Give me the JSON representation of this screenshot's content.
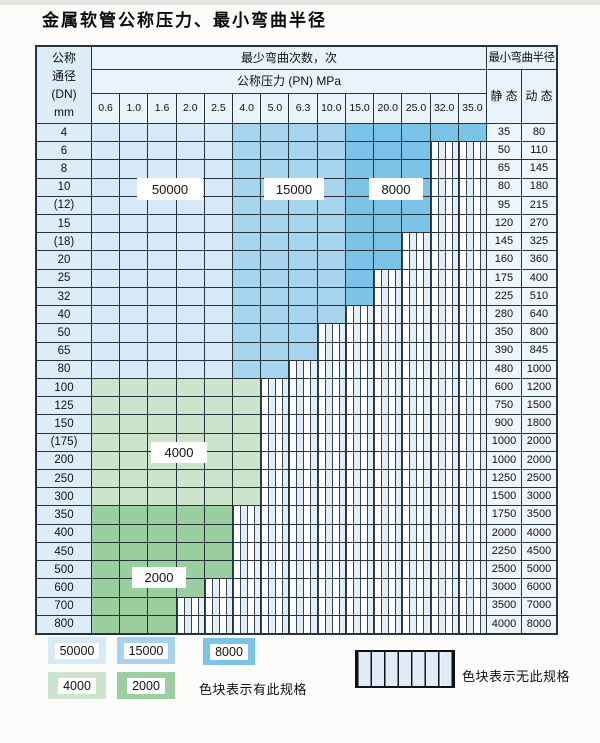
{
  "title": "金属软管公称压力、最小弯曲半径",
  "colors": {
    "c50000": "#d6eaf7",
    "c15000": "#a6d4ee",
    "c8000": "#7cc3e8",
    "c4000": "#cde4cd",
    "c2000": "#9ccf9f",
    "grid_line": "#24333c",
    "header_bg": "#e9f3fa",
    "dn_col_bg": "#ddedf8",
    "value_col_bg": "#eef5fb",
    "hatch_bg": "#eef4fa"
  },
  "table": {
    "header": {
      "dn_lines": [
        "公称",
        "通径",
        "(DN)",
        "mm"
      ],
      "bend_times": "最少弯曲次数，次",
      "pressure": "公称压力 (PN) MPa",
      "radius": "最小弯曲半径",
      "static": "静 态",
      "dynamic": "动 态",
      "pressures": [
        "0.6",
        "1.0",
        "1.6",
        "2.0",
        "2.5",
        "4.0",
        "5.0",
        "6.3",
        "10.0",
        "15.0",
        "20.0",
        "25.0",
        "32.0",
        "35.0"
      ]
    },
    "rows": [
      {
        "dn": "4",
        "band": "blue",
        "colored_until": 14,
        "static": "35",
        "dynamic": "80"
      },
      {
        "dn": "6",
        "band": "blue",
        "colored_until": 12,
        "static": "50",
        "dynamic": "110"
      },
      {
        "dn": "8",
        "band": "blue",
        "colored_until": 12,
        "static": "65",
        "dynamic": "145"
      },
      {
        "dn": "10",
        "band": "blue",
        "colored_until": 12,
        "static": "80",
        "dynamic": "180"
      },
      {
        "dn": "(12)",
        "band": "blue",
        "colored_until": 12,
        "static": "95",
        "dynamic": "215"
      },
      {
        "dn": "15",
        "band": "blue",
        "colored_until": 12,
        "static": "120",
        "dynamic": "270"
      },
      {
        "dn": "(18)",
        "band": "blue",
        "colored_until": 11,
        "static": "145",
        "dynamic": "325"
      },
      {
        "dn": "20",
        "band": "blue",
        "colored_until": 11,
        "static": "160",
        "dynamic": "360"
      },
      {
        "dn": "25",
        "band": "blue",
        "colored_until": 10,
        "static": "175",
        "dynamic": "400"
      },
      {
        "dn": "32",
        "band": "blue",
        "colored_until": 10,
        "static": "225",
        "dynamic": "510"
      },
      {
        "dn": "40",
        "band": "blue",
        "colored_until": 9,
        "static": "280",
        "dynamic": "640"
      },
      {
        "dn": "50",
        "band": "blue",
        "colored_until": 8,
        "static": "350",
        "dynamic": "800"
      },
      {
        "dn": "65",
        "band": "blue",
        "colored_until": 8,
        "static": "390",
        "dynamic": "845"
      },
      {
        "dn": "80",
        "band": "blue",
        "colored_until": 7,
        "static": "480",
        "dynamic": "1000"
      },
      {
        "dn": "100",
        "band": "g1",
        "colored_until": 6,
        "static": "600",
        "dynamic": "1200"
      },
      {
        "dn": "125",
        "band": "g1",
        "colored_until": 6,
        "static": "750",
        "dynamic": "1500"
      },
      {
        "dn": "150",
        "band": "g1",
        "colored_until": 6,
        "static": "900",
        "dynamic": "1800"
      },
      {
        "dn": "(175)",
        "band": "g1",
        "colored_until": 6,
        "static": "1000",
        "dynamic": "2000"
      },
      {
        "dn": "200",
        "band": "g1",
        "colored_until": 6,
        "static": "1000",
        "dynamic": "2000"
      },
      {
        "dn": "250",
        "band": "g1",
        "colored_until": 6,
        "static": "1250",
        "dynamic": "2500"
      },
      {
        "dn": "300",
        "band": "g1",
        "colored_until": 6,
        "static": "1500",
        "dynamic": "3000"
      },
      {
        "dn": "350",
        "band": "g2",
        "colored_until": 5,
        "static": "1750",
        "dynamic": "3500"
      },
      {
        "dn": "400",
        "band": "g2",
        "colored_until": 5,
        "static": "2000",
        "dynamic": "4000"
      },
      {
        "dn": "450",
        "band": "g2",
        "colored_until": 5,
        "static": "2250",
        "dynamic": "4500"
      },
      {
        "dn": "500",
        "band": "g2",
        "colored_until": 5,
        "static": "2500",
        "dynamic": "5000"
      },
      {
        "dn": "600",
        "band": "g2",
        "colored_until": 4,
        "static": "3000",
        "dynamic": "6000"
      },
      {
        "dn": "700",
        "band": "g2",
        "colored_until": 3,
        "static": "3500",
        "dynamic": "7000"
      },
      {
        "dn": "800",
        "band": "g2",
        "colored_until": 3,
        "static": "4000",
        "dynamic": "8000"
      }
    ]
  },
  "overlays": [
    {
      "label": "50000"
    },
    {
      "label": "15000"
    },
    {
      "label": "8000"
    },
    {
      "label": "4000"
    },
    {
      "label": "2000"
    }
  ],
  "legend": {
    "items": [
      {
        "value": "50000"
      },
      {
        "value": "15000"
      },
      {
        "value": "8000"
      },
      {
        "value": "4000"
      },
      {
        "value": "2000"
      }
    ],
    "has_spec_text": "色块表示有此规格",
    "no_spec_text": "色块表示无此规格"
  }
}
